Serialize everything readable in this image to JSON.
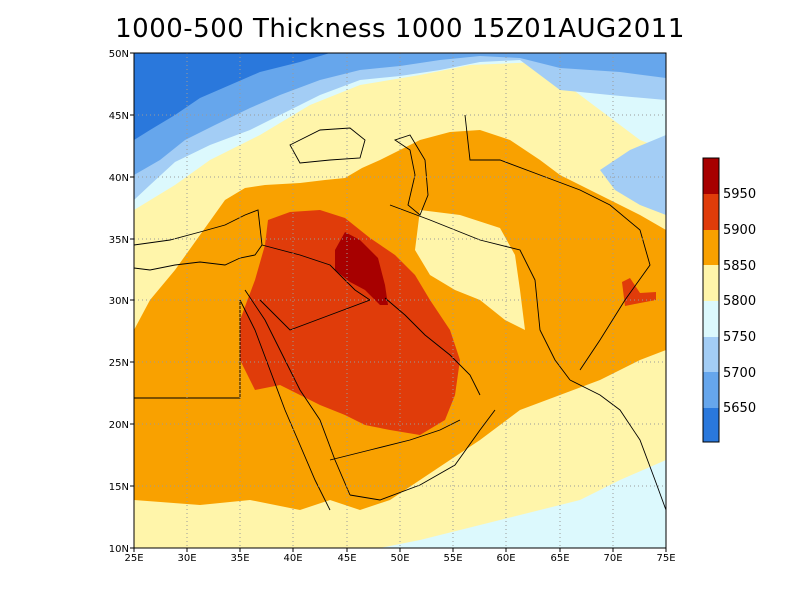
{
  "title": "1000-500 Thickness 1000 15Z01AUG2011",
  "map": {
    "lon_range": [
      25,
      75
    ],
    "lat_range": [
      10,
      50
    ],
    "lon_ticks": [
      "25E",
      "30E",
      "35E",
      "40E",
      "45E",
      "50E",
      "55E",
      "60E",
      "65E",
      "70E",
      "75E"
    ],
    "lat_ticks": [
      "10N",
      "15N",
      "20N",
      "25N",
      "30N",
      "35N",
      "40N",
      "45N",
      "50N"
    ],
    "grid": "dotted"
  },
  "colorbar": {
    "labels": [
      "5650",
      "5700",
      "5750",
      "5800",
      "5850",
      "5900",
      "5950"
    ],
    "colors": [
      "#2a78dc",
      "#66a6ec",
      "#a3cdf5",
      "#dcf9fd",
      "#fff5aa",
      "#f9a100",
      "#e03c0a",
      "#a70000"
    ]
  }
}
